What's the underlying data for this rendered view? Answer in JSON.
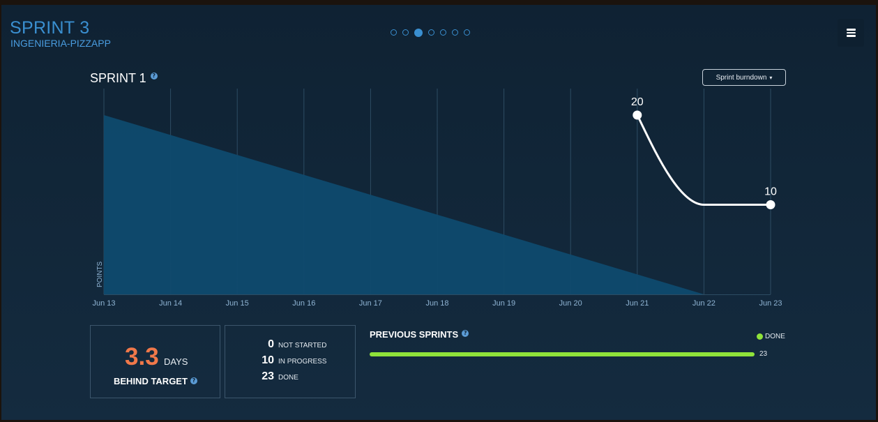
{
  "header": {
    "title": "SPRINT 3",
    "subtitle": "INGENIERIA-PIZZAPP",
    "pagination": {
      "count": 7,
      "active": 3
    },
    "menu_icon": "hamburger-menu-icon"
  },
  "chart_panel": {
    "title": "SPRINT 1",
    "help_glyph": "?",
    "dropdown_label": "Sprint burndown",
    "dropdown_caret": "▾"
  },
  "chart_data": {
    "type": "line",
    "x_categories": [
      "Jun 13",
      "Jun 14",
      "Jun 15",
      "Jun 16",
      "Jun 17",
      "Jun 18",
      "Jun 19",
      "Jun 20",
      "Jun 21",
      "Jun 22",
      "Jun 23"
    ],
    "ylabel": "POINTS",
    "ylim": [
      0,
      20
    ],
    "grid": true,
    "guideline": {
      "type": "area",
      "x_start": "Jun 13",
      "y_start": 20,
      "x_end": "Jun 22",
      "y_end": 0,
      "color": "#0f4a6e"
    },
    "series": [
      {
        "values": [
          {
            "x": "Jun 21",
            "y": 20
          },
          {
            "x": "Jun 22",
            "y": 10
          },
          {
            "x": "Jun 23",
            "y": 10
          }
        ],
        "labels": [
          {
            "x": "Jun 21",
            "text": "20"
          },
          {
            "x": "Jun 23",
            "text": "10"
          }
        ],
        "color": "#ffffff"
      }
    ]
  },
  "stats": {
    "days_value": "3.3",
    "days_unit": "DAYS",
    "behind_label": "BEHIND TARGET",
    "items": [
      {
        "count": "0",
        "label": "NOT STARTED"
      },
      {
        "count": "10",
        "label": "IN PROGRESS"
      },
      {
        "count": "23",
        "label": "DONE"
      }
    ]
  },
  "previous_sprints": {
    "title": "PREVIOUS SPRINTS",
    "legend_label": "DONE",
    "bar_value": "23",
    "bar_color": "#8fe33a"
  },
  "colors": {
    "accent": "#3a8fd0",
    "behind": "#f0784a",
    "done": "#8fe33a"
  }
}
